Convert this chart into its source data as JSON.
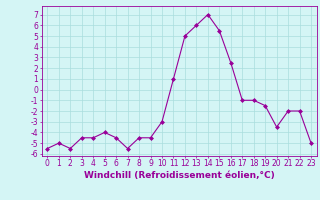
{
  "x": [
    0,
    1,
    2,
    3,
    4,
    5,
    6,
    7,
    8,
    9,
    10,
    11,
    12,
    13,
    14,
    15,
    16,
    17,
    18,
    19,
    20,
    21,
    22,
    23
  ],
  "y": [
    -5.5,
    -5.0,
    -5.5,
    -4.5,
    -4.5,
    -4.0,
    -4.5,
    -5.5,
    -4.5,
    -4.5,
    -3.0,
    1.0,
    5.0,
    6.0,
    7.0,
    5.5,
    2.5,
    -1.0,
    -1.0,
    -1.5,
    -3.5,
    -2.0,
    -2.0,
    -5.0
  ],
  "line_color": "#990099",
  "marker": "D",
  "marker_size": 2,
  "bg_color": "#d4f5f5",
  "grid_color": "#aadddd",
  "xlabel": "Windchill (Refroidissement éolien,°C)",
  "xlim": [
    -0.5,
    23.5
  ],
  "ylim": [
    -6.2,
    7.8
  ],
  "yticks": [
    -6,
    -5,
    -4,
    -3,
    -2,
    -1,
    0,
    1,
    2,
    3,
    4,
    5,
    6,
    7
  ],
  "xticks": [
    0,
    1,
    2,
    3,
    4,
    5,
    6,
    7,
    8,
    9,
    10,
    11,
    12,
    13,
    14,
    15,
    16,
    17,
    18,
    19,
    20,
    21,
    22,
    23
  ],
  "tick_labelsize": 5.5,
  "xlabel_fontsize": 6.5,
  "line_width": 0.8
}
